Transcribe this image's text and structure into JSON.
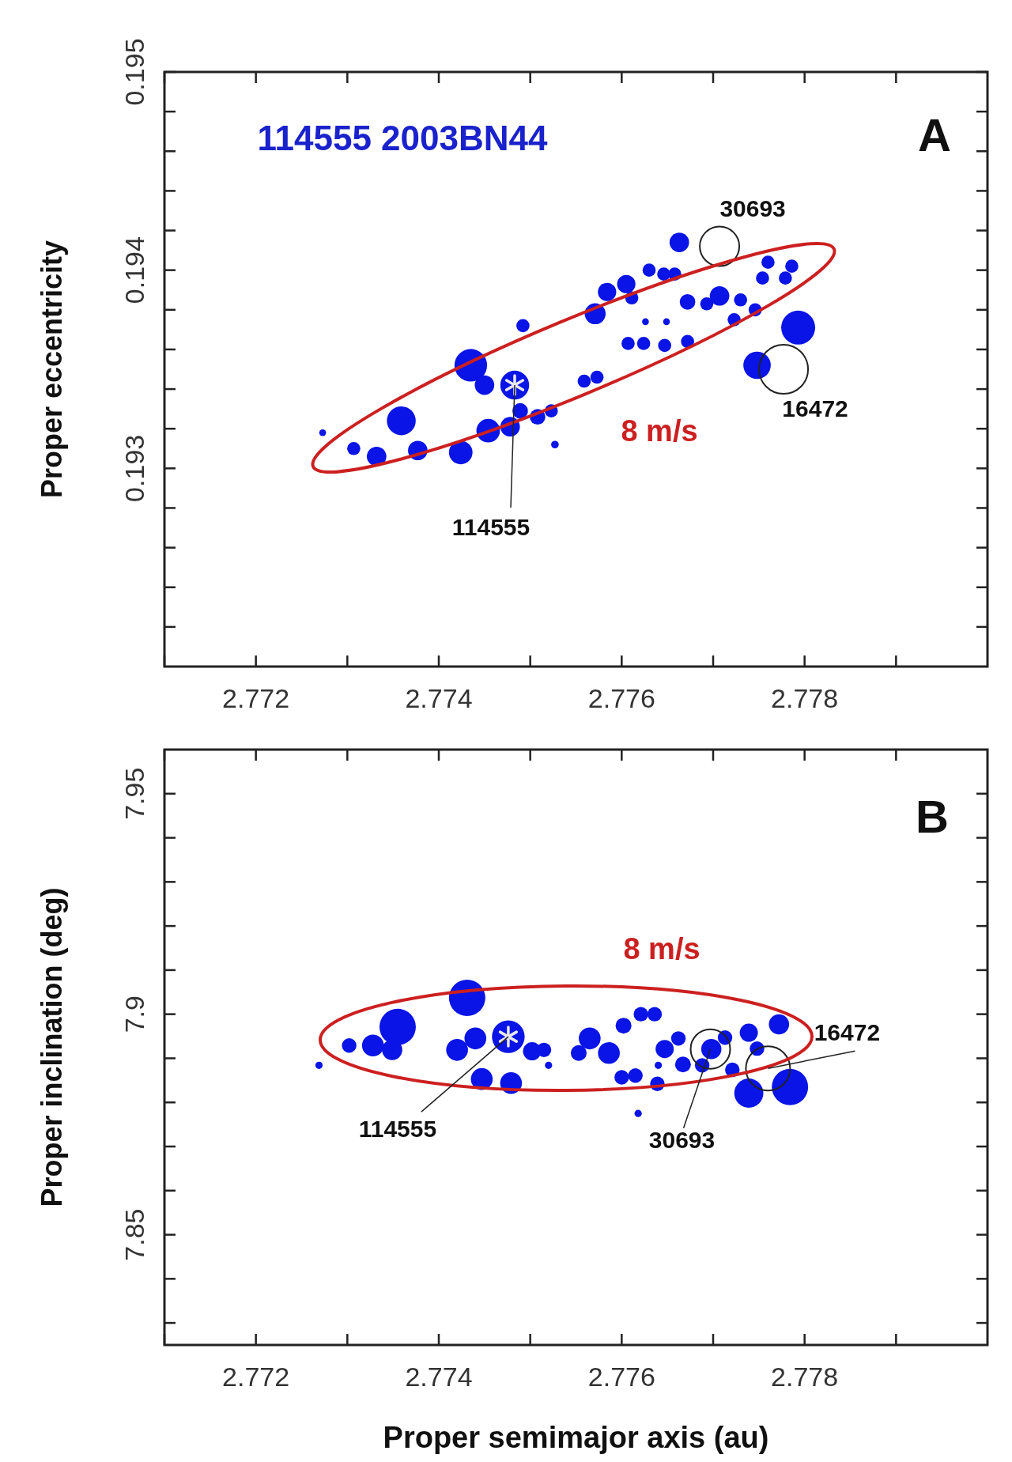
{
  "chart_data": [
    {
      "type": "bubble",
      "title": "114555 2003BN44",
      "ylabel": "Proper eccentricity",
      "xlim": [
        2.771,
        2.78
      ],
      "xticks": [
        {
          "value": 2.771,
          "label": null
        },
        2.772,
        {
          "value": 2.773,
          "label": null
        },
        2.774,
        {
          "value": 2.775,
          "label": null
        },
        2.776,
        {
          "value": 2.777,
          "label": null
        },
        2.778,
        {
          "value": 2.779,
          "label": null
        }
      ],
      "ylim": [
        0.192,
        0.195
      ],
      "yticks": [
        {
          "value": 0.1922,
          "label": null
        },
        {
          "value": 0.1924,
          "label": null
        },
        {
          "value": 0.1926,
          "label": null
        },
        {
          "value": 0.1928,
          "label": null
        },
        0.193,
        {
          "value": 0.1932,
          "label": null
        },
        {
          "value": 0.1934,
          "label": null
        },
        {
          "value": 0.1936,
          "label": null
        },
        {
          "value": 0.1938,
          "label": null
        },
        0.194,
        {
          "value": 0.1942,
          "label": null
        },
        {
          "value": 0.1944,
          "label": null
        },
        {
          "value": 0.1946,
          "label": null
        },
        {
          "value": 0.1948,
          "label": null
        },
        0.195
      ],
      "grid": false,
      "series": [
        {
          "color": "#0a14e6",
          "x": [
            2.77273,
            2.77307,
            2.77332,
            2.77359,
            2.77377,
            2.77424,
            2.77435,
            2.7745,
            2.77483,
            2.77454,
            2.77478,
            2.77489,
            2.77508,
            2.77523,
            2.77527,
            2.77492,
            2.77559,
            2.77573,
            2.77571,
            2.77584,
            2.77605,
            2.77611,
            2.77626,
            2.77649,
            2.77607,
            2.77624,
            2.77647,
            2.77672,
            2.7763,
            2.77646,
            2.77658,
            2.77663,
            2.77672,
            2.77693,
            2.77707,
            2.7773,
            2.77723,
            2.77746,
            2.7776,
            2.77754,
            2.77786,
            2.77779,
            2.77793,
            2.77748
          ],
          "values": [
            0.19318,
            0.1931,
            0.19306,
            0.19324,
            0.19309,
            0.19308,
            0.19352,
            0.19342,
            0.19342,
            0.19319,
            0.19321,
            0.19329,
            0.19326,
            0.19329,
            0.19312,
            0.19372,
            0.19344,
            0.19346,
            0.19378,
            0.19389,
            0.19393,
            0.19386,
            0.19374,
            0.19374,
            0.19363,
            0.19363,
            0.19362,
            0.19364,
            0.194,
            0.19398,
            0.19398,
            0.19414,
            0.19384,
            0.19383,
            0.19387,
            0.19385,
            0.19375,
            0.1938,
            0.19404,
            0.19396,
            0.19402,
            0.19396,
            0.19371,
            0.19352
          ],
          "sizes": [
            0.04,
            0.15,
            0.33,
            0.72,
            0.33,
            0.48,
            0.92,
            0.33,
            0.72,
            0.48,
            0.33,
            0.21,
            0.21,
            0.15,
            0.05,
            0.15,
            0.15,
            0.15,
            0.38,
            0.29,
            0.29,
            0.15,
            0.04,
            0.04,
            0.15,
            0.15,
            0.15,
            0.15,
            0.15,
            0.15,
            0.15,
            0.33,
            0.21,
            0.15,
            0.33,
            0.15,
            0.15,
            0.15,
            0.15,
            0.15,
            0.15,
            0.15,
            1,
            0.65
          ]
        },
        {
          "type": "scatter",
          "color": "#222222",
          "x": [
            2.77707,
            2.77777
          ],
          "values": [
            0.19412,
            0.1935
          ]
        }
      ],
      "annotations": [
        "A",
        "8 m/s",
        {
          "text": "30693",
          "x": 2.77707,
          "y": 0.19412
        },
        {
          "text": "16472",
          "x": 2.77777,
          "y": 0.1935
        },
        {
          "text": "114555",
          "x": 2.77483,
          "y": 0.19342
        }
      ]
    },
    {
      "type": "bubble",
      "xlabel": "Proper semimajor axis (au)",
      "ylabel": "Proper inclination (deg)",
      "xlim": [
        2.771,
        2.78
      ],
      "xticks": [
        {
          "value": 2.771,
          "label": null
        },
        2.772,
        {
          "value": 2.773,
          "label": null
        },
        2.774,
        {
          "value": 2.775,
          "label": null
        },
        2.776,
        {
          "value": 2.777,
          "label": null
        },
        2.778,
        {
          "value": 2.779,
          "label": null
        }
      ],
      "ylim": [
        7.825,
        7.96
      ],
      "yticks": [
        {
          "value": 7.83,
          "label": null
        },
        {
          "value": 7.84,
          "label": null
        },
        7.85,
        {
          "value": 7.86,
          "label": null
        },
        {
          "value": 7.87,
          "label": null
        },
        {
          "value": 7.88,
          "label": null
        },
        {
          "value": 7.89,
          "label": null
        },
        7.9,
        {
          "value": 7.91,
          "label": null
        },
        {
          "value": 7.92,
          "label": null
        },
        {
          "value": 7.93,
          "label": null
        },
        {
          "value": 7.94,
          "label": null
        },
        7.95
      ],
      "grid": false,
      "series": [
        {
          "color": "#0a14e6",
          "x": [
            2.77269,
            2.77302,
            2.77328,
            2.77355,
            2.77349,
            2.77431,
            2.7742,
            2.7744,
            2.77476,
            2.77447,
            2.77479,
            2.77502,
            2.77515,
            2.7752,
            2.77553,
            2.77565,
            2.77586,
            2.77602,
            2.77621,
            2.77636,
            2.776,
            2.77615,
            2.77639,
            2.7764,
            2.77618,
            2.77647,
            2.77662,
            2.77667,
            2.77698,
            2.77688,
            2.77713,
            2.77721,
            2.77739,
            2.77748,
            2.77772,
            2.77739,
            2.77784
          ],
          "values": [
            7.8884,
            7.8929,
            7.8929,
            7.8971,
            7.8919,
            7.9037,
            7.8919,
            7.8945,
            7.8949,
            7.8853,
            7.8844,
            7.8916,
            7.8919,
            7.8884,
            7.8912,
            7.8945,
            7.8912,
            7.8974,
            7.9,
            7.9,
            7.8857,
            7.8861,
            7.8842,
            7.8884,
            7.8775,
            7.8921,
            7.8945,
            7.8886,
            7.8921,
            7.8884,
            7.8947,
            7.8874,
            7.8958,
            7.8922,
            7.8977,
            7.8821,
            7.8835
          ],
          "sizes": [
            0.04,
            0.16,
            0.36,
            1,
            0.31,
            1,
            0.36,
            0.36,
            0.81,
            0.36,
            0.36,
            0.25,
            0.16,
            0.04,
            0.19,
            0.36,
            0.36,
            0.19,
            0.16,
            0.16,
            0.16,
            0.16,
            0.16,
            0.04,
            0.04,
            0.25,
            0.16,
            0.19,
            0.31,
            0.16,
            0.16,
            0.16,
            0.25,
            0.16,
            0.31,
            0.64,
            1
          ]
        },
        {
          "type": "scatter",
          "color": "#222222",
          "x": [
            2.77697,
            2.7776
          ],
          "values": [
            7.8921,
            7.8877
          ]
        }
      ],
      "annotations": [
        "B",
        "8 m/s",
        {
          "text": "30693",
          "x": 2.77697,
          "y": 7.8921
        },
        {
          "text": "16472",
          "x": 2.7776,
          "y": 7.8877
        },
        {
          "text": "114555",
          "x": 2.77476,
          "y": 7.8949
        }
      ]
    }
  ]
}
